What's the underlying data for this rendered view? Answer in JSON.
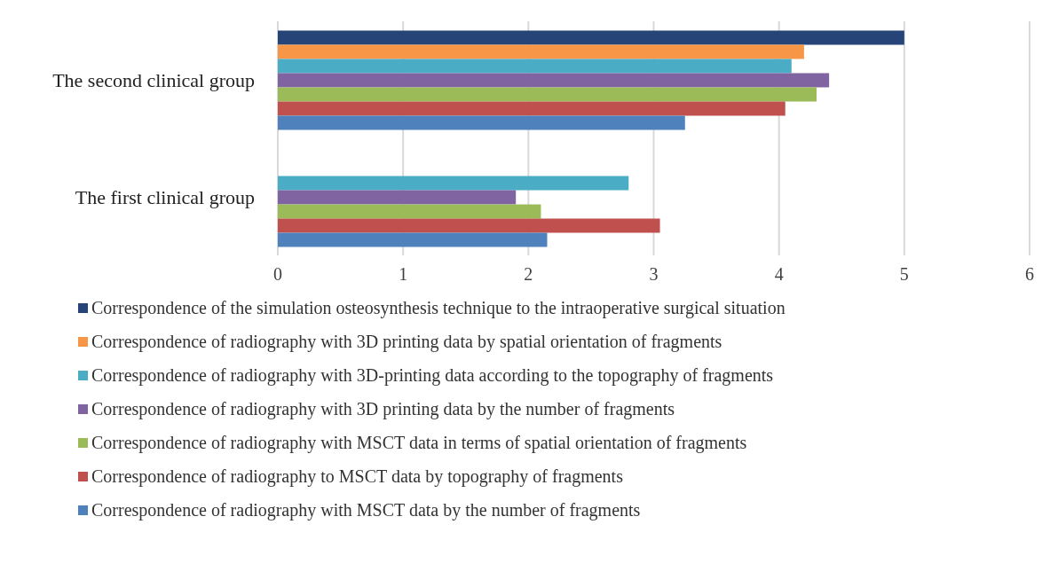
{
  "chart_data": {
    "type": "bar",
    "orientation": "horizontal",
    "categories": [
      "The second clinical group",
      "The first clinical group"
    ],
    "series": [
      {
        "name": "Correspondence of the simulation osteosynthesis technique to the intraoperative surgical situation",
        "color": "#264478",
        "values": [
          5.0,
          null
        ]
      },
      {
        "name": "Correspondence of radiography with 3D printing data by spatial orientation of fragments",
        "color": "#f79646",
        "values": [
          4.2,
          null
        ]
      },
      {
        "name": "Correspondence of radiography with 3D-printing data according to the topography of fragments",
        "color": "#4bacc6",
        "values": [
          4.1,
          2.8
        ]
      },
      {
        "name": "Correspondence of radiography with 3D printing data by the number of fragments",
        "color": "#8064a2",
        "values": [
          4.4,
          1.9
        ]
      },
      {
        "name": "Correspondence of radiography with MSCT data in terms of spatial orientation of fragments",
        "color": "#9bbb59",
        "values": [
          4.3,
          2.1
        ]
      },
      {
        "name": "Correspondence of radiography to MSCT data by topography of fragments",
        "color": "#c0504d",
        "values": [
          4.05,
          3.05
        ]
      },
      {
        "name": "Correspondence of radiography with MSCT data by the number of fragments",
        "color": "#4f81bd",
        "values": [
          3.25,
          2.15
        ]
      }
    ],
    "xlim": [
      0,
      6
    ],
    "xticks": [
      0,
      1,
      2,
      3,
      4,
      5,
      6
    ],
    "grid": "x",
    "legend": "bottom"
  }
}
